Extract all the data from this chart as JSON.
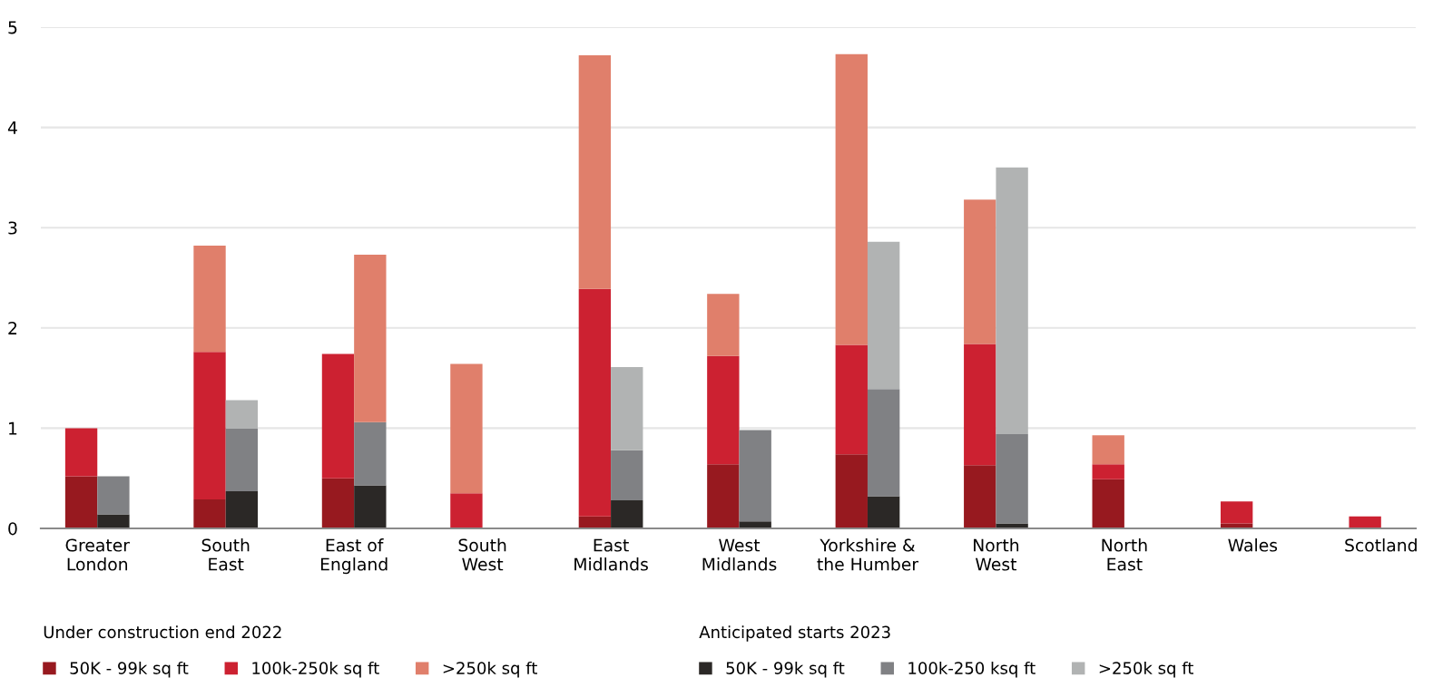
{
  "chart_data": [
    {
      "type": "bar",
      "stacked": true,
      "grid": "y",
      "legend": "bottom",
      "legend_title": "Under construction end 2022",
      "categories": [
        "Greater\nLondon",
        "South\nEast",
        "East of\nEngland",
        "South\nWest",
        "East\nMidlands",
        "West\nMidlands",
        "Yorkshire &\nthe Humber",
        "North\nWest",
        "North\nEast",
        "Wales",
        "Scotland"
      ],
      "series": [
        {
          "name": "50K - 99k sq ft",
          "color": "#97191f",
          "values": [
            0.52,
            0.29,
            0.5,
            0,
            0.12,
            0.64,
            0.74,
            0.63,
            0.49,
            0.05,
            0
          ]
        },
        {
          "name": "100k-250k sq ft",
          "color": "#cc2131",
          "values": [
            0.48,
            1.47,
            1.24,
            0.35,
            2.27,
            1.08,
            1.09,
            1.21,
            0.15,
            0.22,
            0.12
          ]
        },
        {
          "name": ">250k sq ft",
          "color": "#e07f6b",
          "values": [
            0,
            1.06,
            0,
            1.29,
            2.33,
            0.62,
            2.9,
            1.44,
            0.29,
            0,
            0
          ]
        }
      ],
      "ylim": [
        0,
        5
      ],
      "yticks": [
        0,
        1,
        2,
        3,
        4,
        5
      ]
    },
    {
      "type": "bar",
      "stacked": true,
      "legend": "bottom",
      "legend_title": "Anticipated starts 2023",
      "tick_labels": false,
      "categories": [
        null,
        null,
        null,
        null,
        null,
        null,
        null,
        null,
        null,
        null,
        null
      ],
      "series": [
        {
          "name": "50K - 99k sq ft",
          "color": "#2b2826",
          "values": [
            0.14,
            0.37,
            0.43,
            0,
            0.28,
            0.07,
            0.32,
            0.05,
            0,
            0,
            0
          ]
        },
        {
          "name": "100k-250 ksq ft",
          "color": "#808184",
          "values": [
            0.38,
            0.63,
            0.63,
            0,
            0.5,
            0.91,
            1.07,
            0.89,
            0,
            0,
            0
          ]
        },
        {
          "name": ">250k sq ft",
          "color": "#b1b3b3",
          "colors": [
            "#b1b3b3",
            "#b1b3b3",
            "#e07f6b",
            "#b1b3b3",
            "#b1b3b3",
            "#b1b3b3",
            "#b1b3b3",
            "#b1b3b3",
            "#b1b3b3",
            "#b1b3b3",
            "#b1b3b3"
          ],
          "values": [
            0,
            0.28,
            1.67,
            0,
            0.83,
            0,
            1.47,
            2.66,
            0,
            0,
            0
          ]
        }
      ],
      "ylim": [
        0,
        5
      ],
      "yticks": [
        0,
        1,
        2,
        3,
        4,
        5
      ]
    }
  ]
}
